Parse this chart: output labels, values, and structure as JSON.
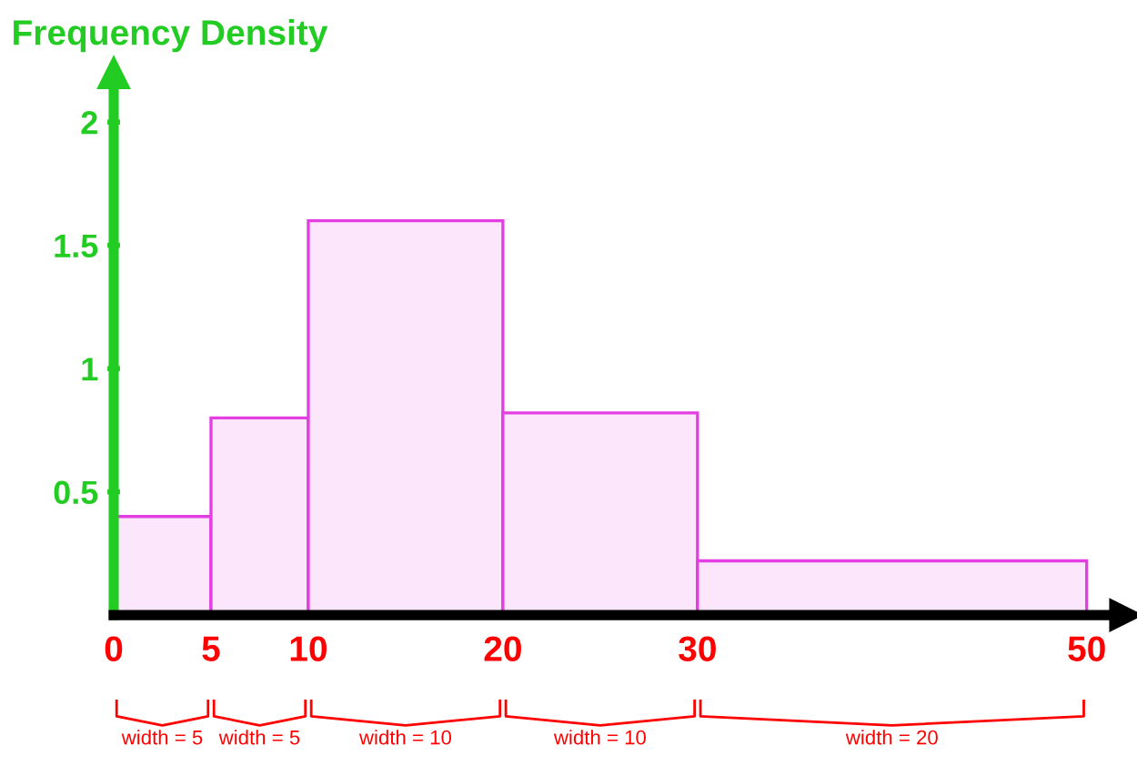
{
  "chart_data": {
    "type": "histogram",
    "ylabel": "Frequency Density",
    "bins": [
      0,
      5,
      10,
      20,
      30,
      50
    ],
    "values": [
      0.4,
      0.8,
      1.6,
      0.82,
      0.22
    ],
    "color": "#fce6fc",
    "xlim": [
      0,
      52
    ],
    "ylim": [
      0,
      2.2
    ],
    "xticks": [
      0,
      5,
      10,
      20,
      30,
      50
    ],
    "yticks": [
      0.5,
      1,
      1.5,
      2
    ],
    "grid": false,
    "legend": false,
    "annotations": [
      "width = 5",
      "width = 5",
      "width = 10",
      "width = 10",
      "width = 20"
    ]
  }
}
